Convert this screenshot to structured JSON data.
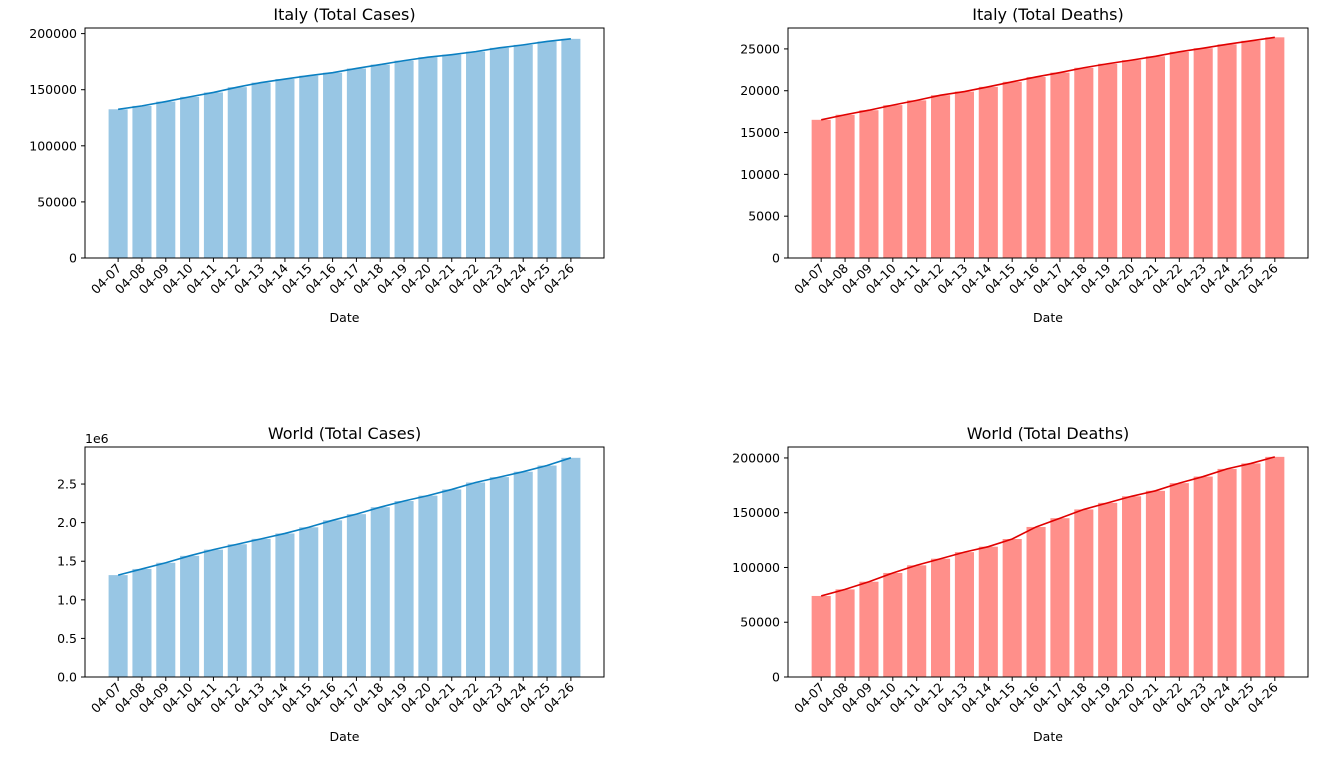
{
  "chart_data": [
    {
      "type": "bar",
      "title": "Italy (Total Cases)",
      "xlabel": "Date",
      "ylabel": "",
      "categories": [
        "04-07",
        "04-08",
        "04-09",
        "04-10",
        "04-11",
        "04-12",
        "04-13",
        "04-14",
        "04-15",
        "04-16",
        "04-17",
        "04-18",
        "04-19",
        "04-20",
        "04-21",
        "04-22",
        "04-23",
        "04-24",
        "04-25",
        "04-26"
      ],
      "values": [
        132547,
        135586,
        139422,
        143626,
        147577,
        152271,
        156363,
        159516,
        162488,
        165155,
        168941,
        172434,
        175925,
        178972,
        181228,
        183957,
        187327,
        189973,
        192994,
        195351
      ],
      "ylim": [
        0,
        205000
      ],
      "yticks": [
        0,
        50000,
        100000,
        150000,
        200000
      ],
      "ytick_labels": [
        "0",
        "50000",
        "100000",
        "150000",
        "200000"
      ],
      "offset_label": "",
      "bar_color": "#98c6e4",
      "line_color": "#0a7fc1",
      "grid": false
    },
    {
      "type": "bar",
      "title": "Italy (Total Deaths)",
      "xlabel": "Date",
      "ylabel": "",
      "categories": [
        "04-07",
        "04-08",
        "04-09",
        "04-10",
        "04-11",
        "04-12",
        "04-13",
        "04-14",
        "04-15",
        "04-16",
        "04-17",
        "04-18",
        "04-19",
        "04-20",
        "04-21",
        "04-22",
        "04-23",
        "04-24",
        "04-25",
        "04-26"
      ],
      "values": [
        16523,
        17127,
        17669,
        18279,
        18849,
        19468,
        19899,
        20465,
        21067,
        21645,
        22170,
        22745,
        23227,
        23660,
        24114,
        24648,
        25085,
        25549,
        25969,
        26384
      ],
      "ylim": [
        0,
        27500
      ],
      "yticks": [
        0,
        5000,
        10000,
        15000,
        20000,
        25000
      ],
      "ytick_labels": [
        "0",
        "5000",
        "10000",
        "15000",
        "20000",
        "25000"
      ],
      "offset_label": "",
      "bar_color": "#ff8f8a",
      "line_color": "#e00000",
      "grid": false
    },
    {
      "type": "bar",
      "title": "World (Total Cases)",
      "xlabel": "Date",
      "ylabel": "",
      "categories": [
        "04-07",
        "04-08",
        "04-09",
        "04-10",
        "04-11",
        "04-12",
        "04-13",
        "04-14",
        "04-15",
        "04-16",
        "04-17",
        "04-18",
        "04-19",
        "04-20",
        "04-21",
        "04-22",
        "04-23",
        "04-24",
        "04-25",
        "04-26"
      ],
      "values": [
        1.32,
        1.4,
        1.48,
        1.57,
        1.65,
        1.72,
        1.79,
        1.86,
        1.94,
        2.03,
        2.11,
        2.2,
        2.28,
        2.35,
        2.43,
        2.52,
        2.59,
        2.66,
        2.74,
        2.84
      ],
      "ylim": [
        0,
        2.98
      ],
      "yticks": [
        0,
        0.5,
        1.0,
        1.5,
        2.0,
        2.5
      ],
      "ytick_labels": [
        "0.0",
        "0.5",
        "1.0",
        "1.5",
        "2.0",
        "2.5"
      ],
      "offset_label": "1e6",
      "bar_color": "#98c6e4",
      "line_color": "#0a7fc1",
      "grid": false
    },
    {
      "type": "bar",
      "title": "World (Total Deaths)",
      "xlabel": "Date",
      "ylabel": "",
      "categories": [
        "04-07",
        "04-08",
        "04-09",
        "04-10",
        "04-11",
        "04-12",
        "04-13",
        "04-14",
        "04-15",
        "04-16",
        "04-17",
        "04-18",
        "04-19",
        "04-20",
        "04-21",
        "04-22",
        "04-23",
        "04-24",
        "04-25",
        "04-26"
      ],
      "values": [
        74000,
        80000,
        87000,
        95000,
        102000,
        108000,
        114000,
        119000,
        126000,
        137000,
        145000,
        153000,
        159000,
        165000,
        170000,
        177000,
        183000,
        190000,
        195000,
        201000
      ],
      "ylim": [
        0,
        210000
      ],
      "yticks": [
        0,
        50000,
        100000,
        150000,
        200000
      ],
      "ytick_labels": [
        "0",
        "50000",
        "100000",
        "150000",
        "200000"
      ],
      "offset_label": "",
      "bar_color": "#ff8f8a",
      "line_color": "#e00000",
      "grid": false
    }
  ]
}
